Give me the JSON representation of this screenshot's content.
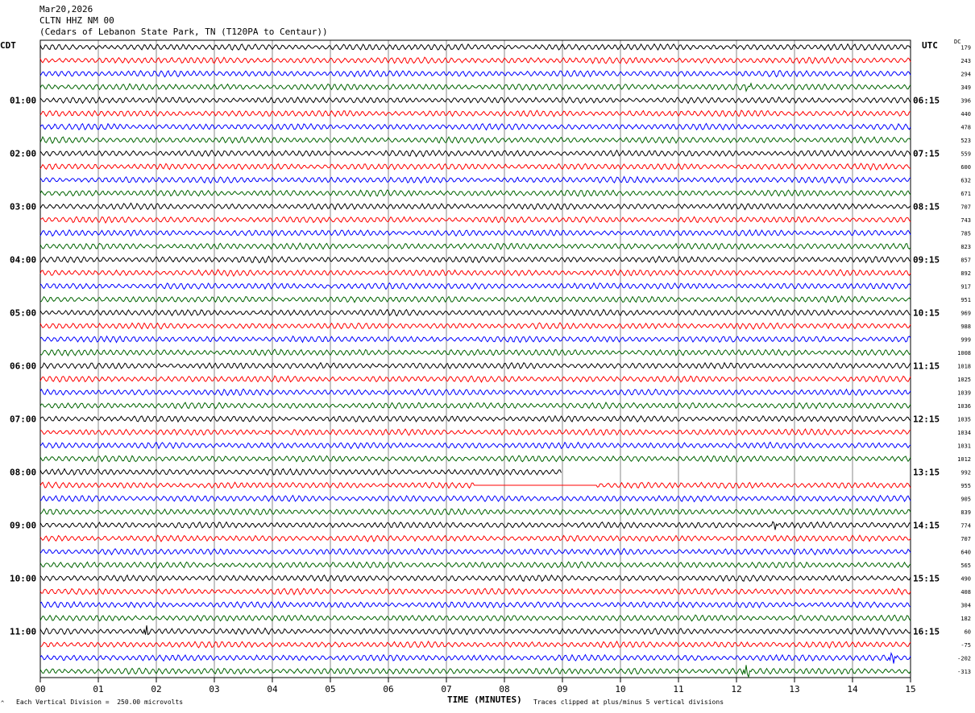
{
  "header": {
    "date": "Mar20,2026",
    "station": "CLTN HHZ NM 00",
    "site": "(Cedars of Lebanon State Park, TN (T120PA to Centaur))"
  },
  "labels": {
    "left_timezone": "CDT",
    "right_timezone": "UTC",
    "dc_header": "DC",
    "corner_mark": "^",
    "scale_note": "Each Vertical Division =  250.00 microvolts",
    "clip_note": "Traces clipped at plus/minus 5 vertical divisions"
  },
  "colors": {
    "trace_cycle": [
      "#000000",
      "#ff0000",
      "#0000ff",
      "#006400"
    ],
    "grid": "#888888",
    "background": "#ffffff"
  },
  "chart_data": {
    "type": "line",
    "subtype": "helicorder",
    "xlabel": "TIME (MINUTES)",
    "xlim": [
      0,
      15
    ],
    "x_ticks": [
      "00",
      "01",
      "02",
      "03",
      "04",
      "05",
      "06",
      "07",
      "08",
      "09",
      "10",
      "11",
      "12",
      "13",
      "14",
      "15"
    ],
    "grid": true,
    "left_hour_labels": [
      {
        "row": 4,
        "label": "01:00"
      },
      {
        "row": 8,
        "label": "02:00"
      },
      {
        "row": 12,
        "label": "03:00"
      },
      {
        "row": 16,
        "label": "04:00"
      },
      {
        "row": 20,
        "label": "05:00"
      },
      {
        "row": 24,
        "label": "06:00"
      },
      {
        "row": 28,
        "label": "07:00"
      },
      {
        "row": 32,
        "label": "08:00"
      },
      {
        "row": 36,
        "label": "09:00"
      },
      {
        "row": 40,
        "label": "10:00"
      },
      {
        "row": 44,
        "label": "11:00"
      }
    ],
    "right_hour_labels": [
      {
        "row": 4,
        "label": "06:15"
      },
      {
        "row": 8,
        "label": "07:15"
      },
      {
        "row": 12,
        "label": "08:15"
      },
      {
        "row": 16,
        "label": "09:15"
      },
      {
        "row": 20,
        "label": "10:15"
      },
      {
        "row": 24,
        "label": "11:15"
      },
      {
        "row": 28,
        "label": "12:15"
      },
      {
        "row": 32,
        "label": "13:15"
      },
      {
        "row": 36,
        "label": "14:15"
      },
      {
        "row": 40,
        "label": "15:15"
      },
      {
        "row": 44,
        "label": "16:15"
      }
    ],
    "dc_offsets": [
      "179",
      "243",
      "294",
      "349",
      "396",
      "440",
      "478",
      "523",
      "559",
      "600",
      "632",
      "671",
      "707",
      "743",
      "785",
      "823",
      "857",
      "892",
      "917",
      "951",
      "969",
      "988",
      "999",
      "1008",
      "1018",
      "1025",
      "1039",
      "1036",
      "1035",
      "1034",
      "1031",
      "1012",
      "992",
      "955",
      "905",
      "839",
      "774",
      "707",
      "640",
      "565",
      "490",
      "408",
      "304",
      "182",
      "60",
      "-75",
      "-202",
      "-313"
    ],
    "rows": 48,
    "amplitude_divisions": 1.0,
    "events": [
      {
        "row": 44,
        "minute": 1.82,
        "amplitude": 7
      },
      {
        "row": 47,
        "minute": 12.18,
        "amplitude": 9
      },
      {
        "row": 46,
        "minute": 14.68,
        "amplitude": 8
      },
      {
        "row": 36,
        "minute": 12.65,
        "amplitude": 5
      },
      {
        "row": 3,
        "minute": 12.2,
        "amplitude": 4
      }
    ],
    "gaps": [
      {
        "row": 32,
        "from_minute": 9.0,
        "to_minute": 15.0
      },
      {
        "row": 33,
        "from_minute": 7.5,
        "to_minute": 9.6,
        "flat": true
      }
    ]
  }
}
